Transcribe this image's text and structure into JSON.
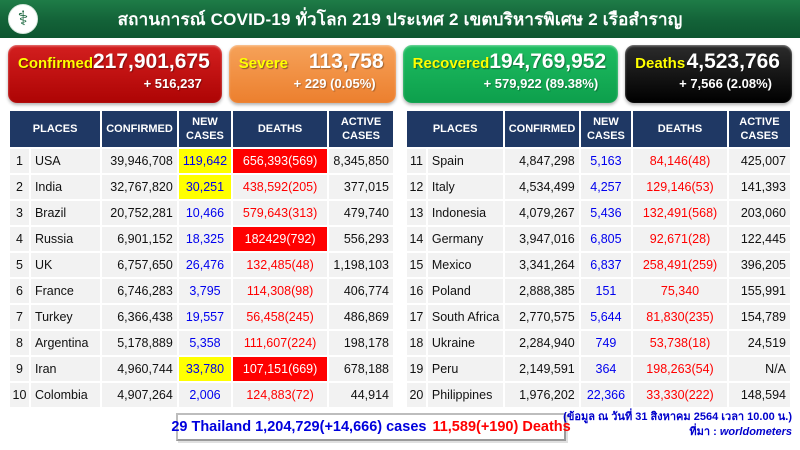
{
  "header": {
    "title": "สถานการณ์ COVID-19 ทั่วโลก 219 ประเทศ 2 เขตบริหารพิเศษ 2 เรือสำราญ",
    "logo_icon": "moph-caduceus",
    "logo_glyph": "⚕"
  },
  "cards": [
    {
      "label": "Confirmed",
      "value": "217,901,675",
      "delta": "+ 516,237",
      "color": "#b50b0b"
    },
    {
      "label": "Severe",
      "value": "113,758",
      "delta": "+ 229 (0.05%)",
      "color": "#ee8633"
    },
    {
      "label": "Recovered",
      "value": "194,769,952",
      "delta": "+ 579,922 (89.38%)",
      "color": "#12ab55"
    },
    {
      "label": "Deaths",
      "value": "4,523,766",
      "delta": "+ 7,566 (2.08%)",
      "color": "#0a0a0a"
    }
  ],
  "table_headers": [
    "PLACES",
    "CONFIRMED",
    "NEW CASES",
    "DEATHS",
    "ACTIVE CASES"
  ],
  "left_rows": [
    {
      "rank": "1",
      "place": "USA",
      "confirmed": "39,946,708",
      "new_cases": "119,642",
      "deaths": "656,393(569)",
      "active": "8,345,850",
      "new_highlight": true,
      "deaths_highlight": true
    },
    {
      "rank": "2",
      "place": "India",
      "confirmed": "32,767,820",
      "new_cases": "30,251",
      "deaths": "438,592(205)",
      "active": "377,015",
      "new_highlight": true,
      "deaths_highlight": false
    },
    {
      "rank": "3",
      "place": "Brazil",
      "confirmed": "20,752,281",
      "new_cases": "10,466",
      "deaths": "579,643(313)",
      "active": "479,740",
      "new_highlight": false,
      "deaths_highlight": false
    },
    {
      "rank": "4",
      "place": "Russia",
      "confirmed": "6,901,152",
      "new_cases": "18,325",
      "deaths": "182429(792)",
      "active": "556,293",
      "new_highlight": false,
      "deaths_highlight": true
    },
    {
      "rank": "5",
      "place": "UK",
      "confirmed": "6,757,650",
      "new_cases": "26,476",
      "deaths": "132,485(48)",
      "active": "1,198,103",
      "new_highlight": false,
      "deaths_highlight": false
    },
    {
      "rank": "6",
      "place": "France",
      "confirmed": "6,746,283",
      "new_cases": "3,795",
      "deaths": "114,308(98)",
      "active": "406,774",
      "new_highlight": false,
      "deaths_highlight": false
    },
    {
      "rank": "7",
      "place": "Turkey",
      "confirmed": "6,366,438",
      "new_cases": "19,557",
      "deaths": "56,458(245)",
      "active": "486,869",
      "new_highlight": false,
      "deaths_highlight": false
    },
    {
      "rank": "8",
      "place": "Argentina",
      "confirmed": "5,178,889",
      "new_cases": "5,358",
      "deaths": "111,607(224)",
      "active": "198,178",
      "new_highlight": false,
      "deaths_highlight": false
    },
    {
      "rank": "9",
      "place": "Iran",
      "confirmed": "4,960,744",
      "new_cases": "33,780",
      "deaths": "107,151(669)",
      "active": "678,188",
      "new_highlight": true,
      "deaths_highlight": true
    },
    {
      "rank": "10",
      "place": "Colombia",
      "confirmed": "4,907,264",
      "new_cases": "2,006",
      "deaths": "124,883(72)",
      "active": "44,914",
      "new_highlight": false,
      "deaths_highlight": false
    }
  ],
  "right_rows": [
    {
      "rank": "11",
      "place": "Spain",
      "confirmed": "4,847,298",
      "new_cases": "5,163",
      "deaths": "84,146(48)",
      "active": "425,007",
      "new_highlight": false,
      "deaths_highlight": false
    },
    {
      "rank": "12",
      "place": "Italy",
      "confirmed": "4,534,499",
      "new_cases": "4,257",
      "deaths": "129,146(53)",
      "active": "141,393",
      "new_highlight": false,
      "deaths_highlight": false
    },
    {
      "rank": "13",
      "place": "Indonesia",
      "confirmed": "4,079,267",
      "new_cases": "5,436",
      "deaths": "132,491(568)",
      "active": "203,060",
      "new_highlight": false,
      "deaths_highlight": false
    },
    {
      "rank": "14",
      "place": "Germany",
      "confirmed": "3,947,016",
      "new_cases": "6,805",
      "deaths": "92,671(28)",
      "active": "122,445",
      "new_highlight": false,
      "deaths_highlight": false
    },
    {
      "rank": "15",
      "place": "Mexico",
      "confirmed": "3,341,264",
      "new_cases": "6,837",
      "deaths": "258,491(259)",
      "active": "396,205",
      "new_highlight": false,
      "deaths_highlight": false
    },
    {
      "rank": "16",
      "place": "Poland",
      "confirmed": "2,888,385",
      "new_cases": "151",
      "deaths": "75,340",
      "active": "155,991",
      "new_highlight": false,
      "deaths_highlight": false
    },
    {
      "rank": "17",
      "place": "South Africa",
      "confirmed": "2,770,575",
      "new_cases": "5,644",
      "deaths": "81,830(235)",
      "active": "154,789",
      "new_highlight": false,
      "deaths_highlight": false
    },
    {
      "rank": "18",
      "place": "Ukraine",
      "confirmed": "2,284,940",
      "new_cases": "749",
      "deaths": "53,738(18)",
      "active": "24,519",
      "new_highlight": false,
      "deaths_highlight": false
    },
    {
      "rank": "19",
      "place": "Peru",
      "confirmed": "2,149,591",
      "new_cases": "364",
      "deaths": "198,263(54)",
      "active": "N/A",
      "new_highlight": false,
      "deaths_highlight": false
    },
    {
      "rank": "20",
      "place": "Philippines",
      "confirmed": "1,976,202",
      "new_cases": "22,366",
      "deaths": "33,330(222)",
      "active": "148,594",
      "new_highlight": false,
      "deaths_highlight": false
    }
  ],
  "footer": {
    "thailand_cases": "29 Thailand 1,204,729(+14,666) cases",
    "thailand_deaths": "11,589(+190) Deaths",
    "data_as_of": "(ข้อมูล ณ วันที่ 31 สิงหาคม 2564 เวลา 10.00 น.)",
    "source_label": "ที่มา :",
    "source_value": "worldometers"
  },
  "colors": {
    "topbar_green": "#136238",
    "table_header_navy": "#1f3864",
    "row_gray": "#f2f2f2",
    "new_cases_blue": "#0000ee",
    "deaths_red": "#ff0000",
    "highlight_yellow": "#ffff00",
    "highlight_red": "#ff0000",
    "thailand_blue": "#0000dd",
    "source_blue": "#0000cc"
  }
}
